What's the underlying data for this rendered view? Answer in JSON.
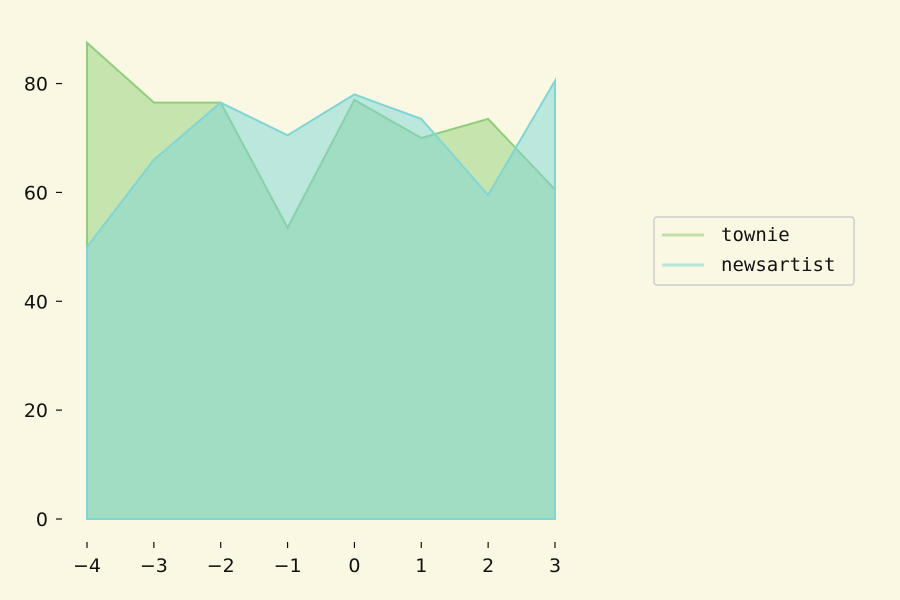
{
  "chart_data": {
    "type": "area",
    "x": [
      -4,
      -3,
      -2,
      -1,
      0,
      1,
      2,
      3
    ],
    "x_tick_labels": [
      "−4",
      "−3",
      "−2",
      "−1",
      "0",
      "1",
      "2",
      "3"
    ],
    "y_ticks": [
      0,
      20,
      40,
      60,
      80
    ],
    "y_tick_labels": [
      "0",
      "20",
      "40",
      "60",
      "80"
    ],
    "xlim": [
      -4,
      3
    ],
    "ylim": [
      0,
      88
    ],
    "grid": false,
    "legend_position": "right",
    "series": [
      {
        "name": "townie",
        "color": "#8fcf7a",
        "values": [
          87.5,
          76.5,
          76.5,
          53.5,
          77.0,
          70.0,
          73.5,
          60.5
        ]
      },
      {
        "name": "newsartist",
        "color": "#7ed6d6",
        "values": [
          50.0,
          66.0,
          76.5,
          70.5,
          78.0,
          73.5,
          59.5,
          80.5
        ]
      }
    ]
  }
}
